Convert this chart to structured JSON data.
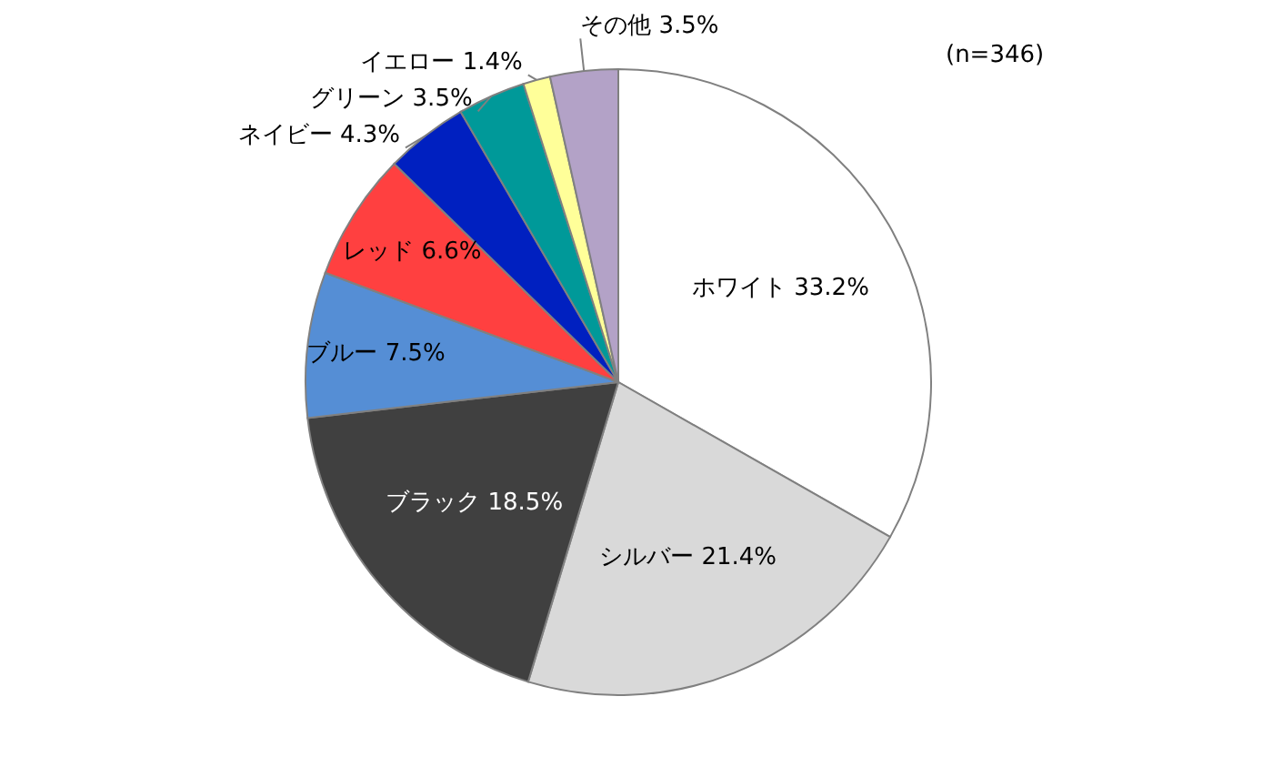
{
  "chart_data": {
    "type": "pie",
    "categories": [
      "ホワイト",
      "シルバー",
      "ブラック",
      "ブルー",
      "レッド",
      "ネイビー",
      "グリーン",
      "イエロー",
      "その他"
    ],
    "values": [
      33.2,
      21.4,
      18.5,
      7.5,
      6.6,
      4.3,
      3.5,
      1.4,
      3.5
    ],
    "colors": [
      "#ffffff",
      "#d9d9d9",
      "#404040",
      "#558ed5",
      "#ff4040",
      "#0020c0",
      "#009999",
      "#ffff99",
      "#b3a2c7"
    ],
    "value_labels": [
      "33.2%",
      "21.4%",
      "18.5%",
      "7.5%",
      "6.6%",
      "4.3%",
      "3.5%",
      "1.4%",
      "3.5%"
    ],
    "annotations": [
      "(n=346)"
    ]
  }
}
